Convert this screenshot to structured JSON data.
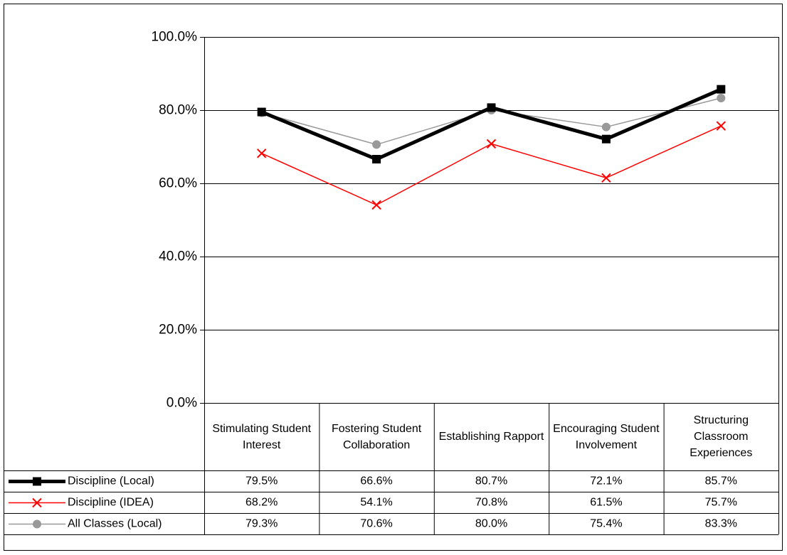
{
  "chart_data": {
    "type": "line",
    "categories": [
      "Stimulating Student Interest",
      "Fostering Student Collaboration",
      "Establishing Rapport",
      "Encouraging Student Involvement",
      "Structuring Classroom Experiences"
    ],
    "series": [
      {
        "name": "Discipline (Local)",
        "color": "#000000",
        "marker": "square",
        "values": [
          79.5,
          66.6,
          80.7,
          72.1,
          85.7
        ],
        "value_labels": [
          "79.5%",
          "66.6%",
          "80.7%",
          "72.1%",
          "85.7%"
        ]
      },
      {
        "name": "Discipline (IDEA)",
        "color": "#ff0000",
        "marker": "x",
        "values": [
          68.2,
          54.1,
          70.8,
          61.5,
          75.7
        ],
        "value_labels": [
          "68.2%",
          "54.1%",
          "70.8%",
          "61.5%",
          "75.7%"
        ]
      },
      {
        "name": "All Classes (Local)",
        "color": "#999999",
        "marker": "circle",
        "values": [
          79.3,
          70.6,
          80.0,
          75.4,
          83.3
        ],
        "value_labels": [
          "79.3%",
          "70.6%",
          "80.0%",
          "75.4%",
          "83.3%"
        ]
      }
    ],
    "ylim": [
      0,
      100
    ],
    "yticks": [
      {
        "value": 0,
        "label": "0.0%"
      },
      {
        "value": 20,
        "label": "20.0%"
      },
      {
        "value": 40,
        "label": "40.0%"
      },
      {
        "value": 60,
        "label": "60.0%"
      },
      {
        "value": 80,
        "label": "80.0%"
      },
      {
        "value": 100,
        "label": "100.0%"
      }
    ],
    "grid": true
  }
}
